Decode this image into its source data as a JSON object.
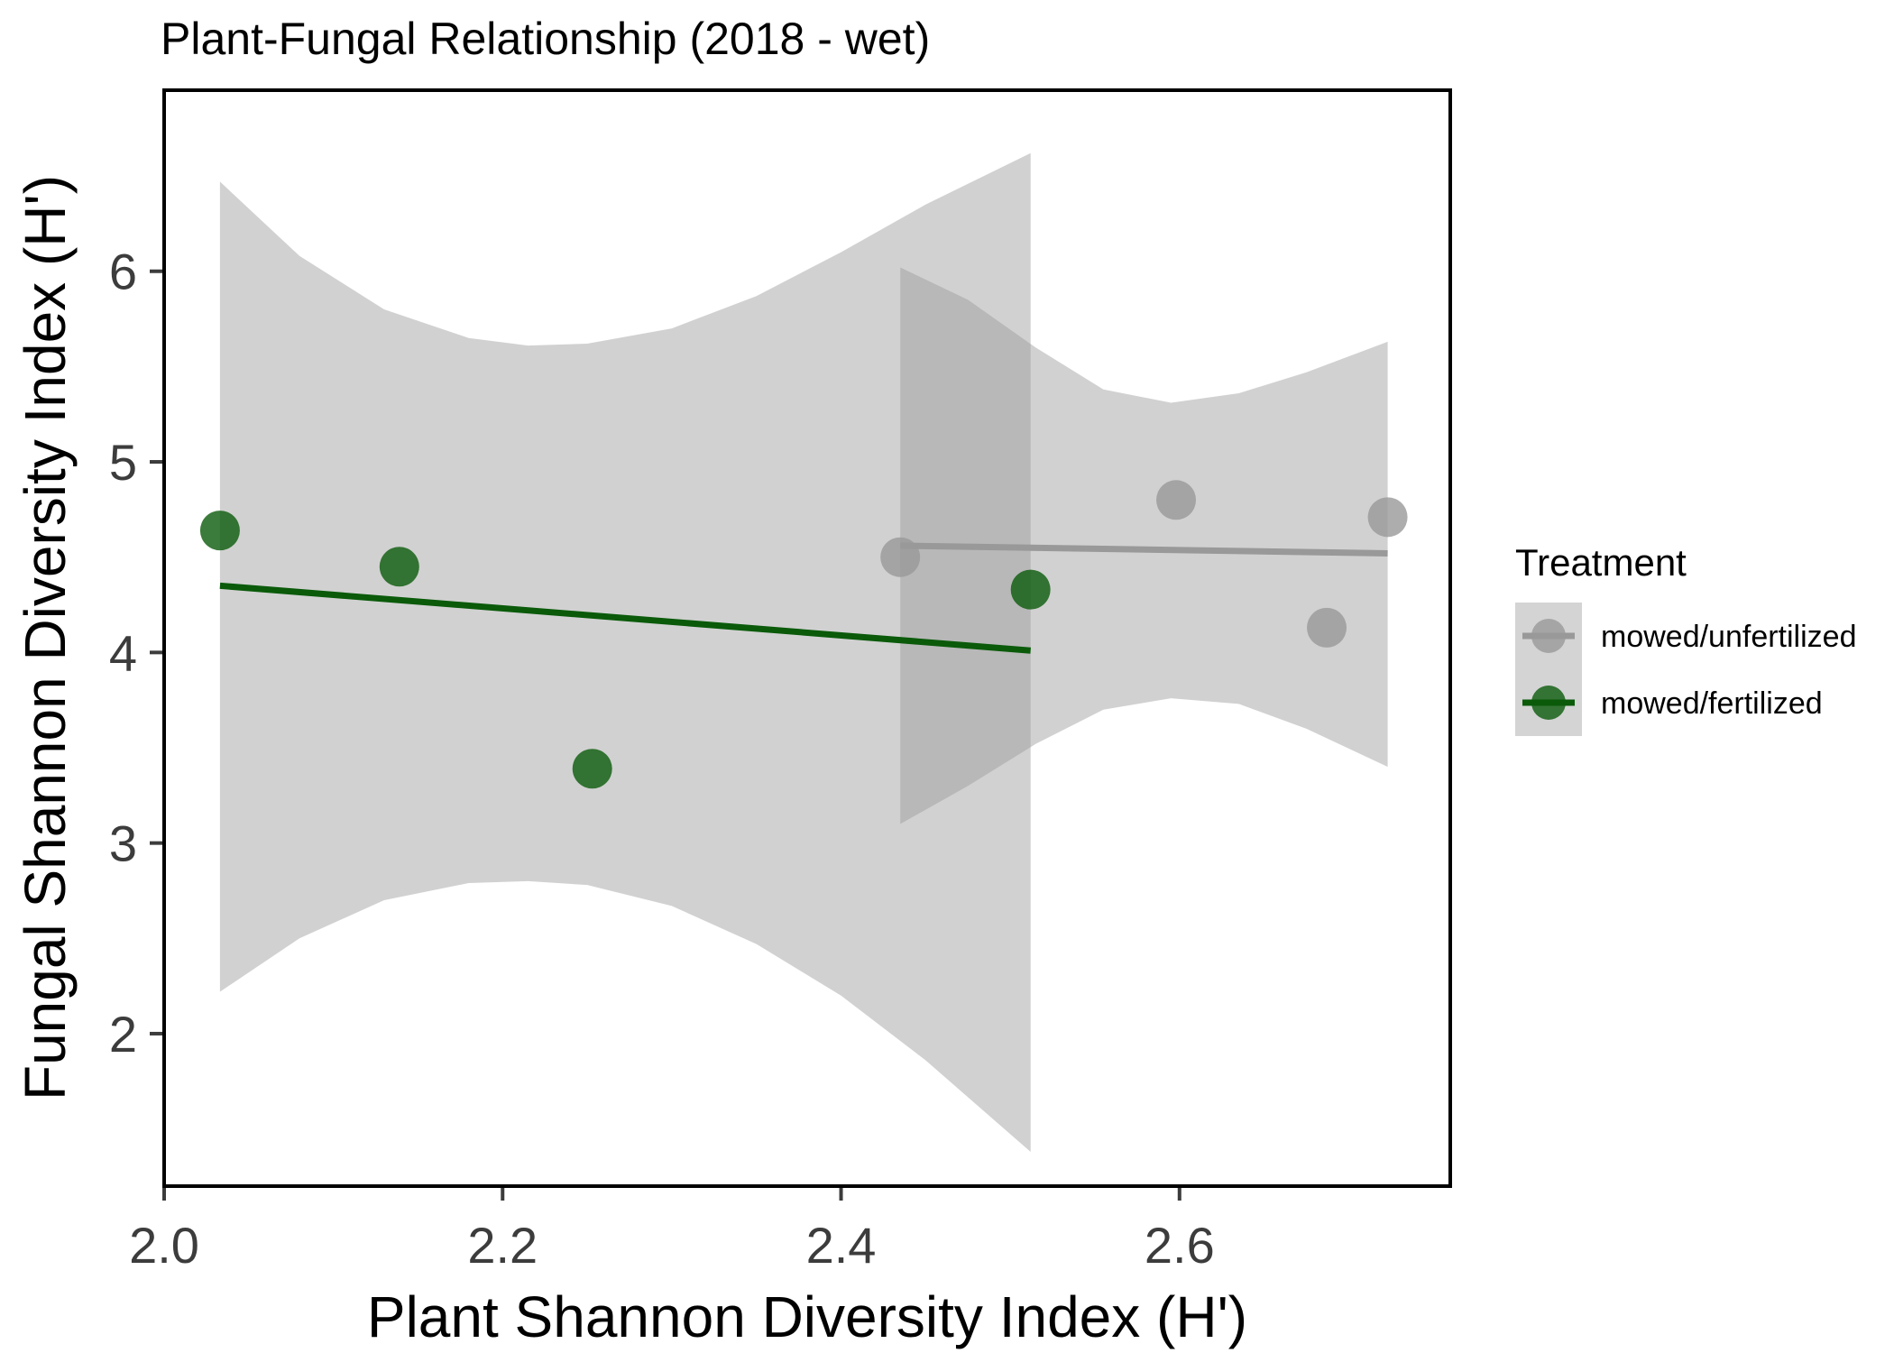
{
  "chart_data": {
    "type": "scatter",
    "title": "Plant-Fungal Relationship (2018 - wet)",
    "xlabel": "Plant Shannon Diversity Index (H')",
    "ylabel": "Fungal Shannon Diversity Index (H')",
    "xlim": [
      2.0,
      2.76
    ],
    "ylim": [
      1.2,
      6.95
    ],
    "xticks": [
      2.0,
      2.2,
      2.4,
      2.6
    ],
    "xtick_labels": [
      "2.0",
      "2.2",
      "2.4",
      "2.6"
    ],
    "yticks": [
      2,
      3,
      4,
      5,
      6
    ],
    "ytick_labels": [
      "2",
      "3",
      "4",
      "5",
      "6"
    ],
    "grid": false,
    "legend": {
      "title": "Treatment",
      "placement": "right"
    },
    "series": [
      {
        "name": "mowed/unfertilized",
        "color": "#999999",
        "points": [
          {
            "x": 2.435,
            "y": 4.5
          },
          {
            "x": 2.598,
            "y": 4.8
          },
          {
            "x": 2.687,
            "y": 4.13
          },
          {
            "x": 2.723,
            "y": 4.71
          }
        ],
        "fit": {
          "x": [
            2.435,
            2.723
          ],
          "y": [
            4.56,
            4.52
          ]
        },
        "ci": {
          "x": [
            2.435,
            2.475,
            2.515,
            2.555,
            2.595,
            2.635,
            2.675,
            2.723
          ],
          "upper": [
            6.02,
            5.85,
            5.6,
            5.38,
            5.31,
            5.36,
            5.47,
            5.63
          ],
          "lower": [
            3.1,
            3.3,
            3.52,
            3.7,
            3.76,
            3.73,
            3.6,
            3.4
          ]
        }
      },
      {
        "name": "mowed/fertilized",
        "color": "#0a5a0a",
        "points": [
          {
            "x": 2.033,
            "y": 4.64
          },
          {
            "x": 2.139,
            "y": 4.45
          },
          {
            "x": 2.253,
            "y": 3.39
          },
          {
            "x": 2.512,
            "y": 4.33
          }
        ],
        "fit": {
          "x": [
            2.033,
            2.512
          ],
          "y": [
            4.35,
            4.01
          ]
        },
        "ci": {
          "x": [
            2.033,
            2.08,
            2.13,
            2.18,
            2.215,
            2.25,
            2.3,
            2.35,
            2.4,
            2.45,
            2.512
          ],
          "upper": [
            6.47,
            6.08,
            5.8,
            5.65,
            5.61,
            5.62,
            5.7,
            5.87,
            6.1,
            6.35,
            6.62
          ],
          "lower": [
            2.22,
            2.5,
            2.7,
            2.79,
            2.8,
            2.78,
            2.67,
            2.47,
            2.2,
            1.86,
            1.38
          ]
        }
      }
    ]
  }
}
